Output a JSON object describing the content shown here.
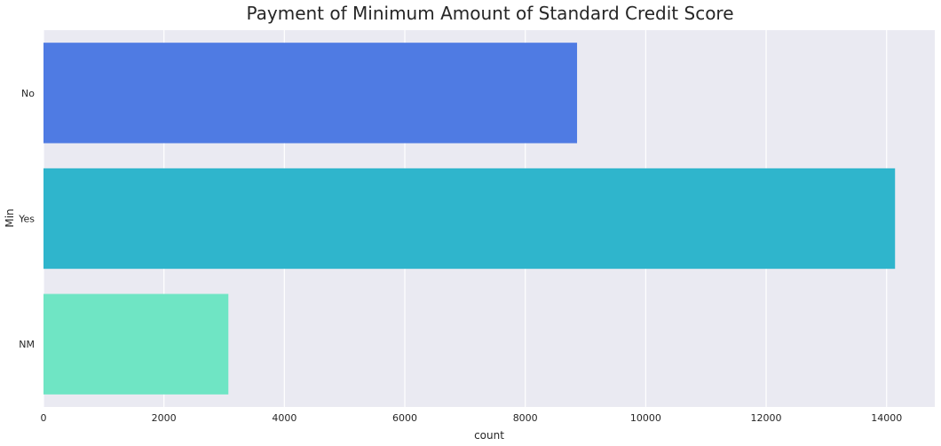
{
  "chart_data": {
    "type": "bar",
    "orientation": "horizontal",
    "title": "Payment of Minimum Amount of Standard Credit Score",
    "xlabel": "count",
    "ylabel": "Min",
    "categories": [
      "No",
      "Yes",
      "NM"
    ],
    "values": [
      8860,
      14140,
      3070
    ],
    "colors": [
      "#4f7be3",
      "#2fb5cc",
      "#6fe5c4"
    ],
    "xlim": [
      0,
      14800
    ],
    "xticks": [
      0,
      2000,
      4000,
      6000,
      8000,
      10000,
      12000,
      14000
    ],
    "grid": true,
    "background": "#eaeaf2",
    "legend": "none"
  }
}
